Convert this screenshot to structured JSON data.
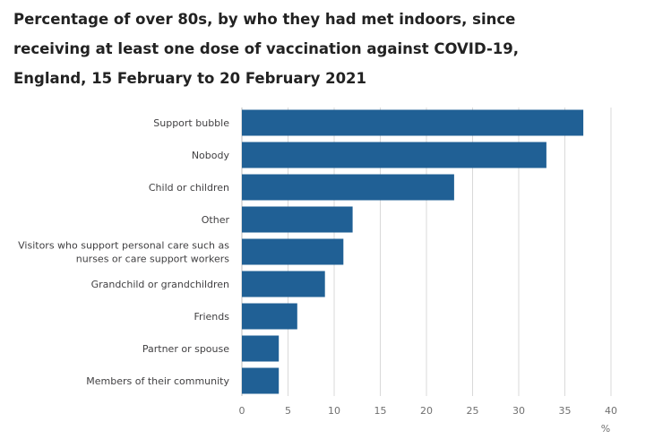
{
  "chart_data": {
    "type": "bar",
    "orientation": "horizontal",
    "title": "Percentage of over 80s, by who they had met indoors, since receiving at least one dose of vaccination against COVID-19, England, 15 February to 20 February 2021",
    "xlabel": "%",
    "xlim": [
      0,
      40
    ],
    "xticks": [
      "0",
      "5",
      "10",
      "15",
      "20",
      "25",
      "30",
      "35",
      "40"
    ],
    "grid": true,
    "categories": [
      [
        "Support bubble"
      ],
      [
        "Nobody"
      ],
      [
        "Child or children"
      ],
      [
        "Other"
      ],
      [
        "Visitors who support personal care such as",
        "nurses or care support workers"
      ],
      [
        "Grandchild or grandchildren"
      ],
      [
        "Friends"
      ],
      [
        "Partner or spouse"
      ],
      [
        "Members of their community"
      ]
    ],
    "values": [
      37,
      33,
      23,
      12,
      11,
      9,
      6,
      4,
      4
    ],
    "colors": {
      "bar": "#206095",
      "grid": "#d9d9d9",
      "axis": "#bebebe"
    }
  }
}
